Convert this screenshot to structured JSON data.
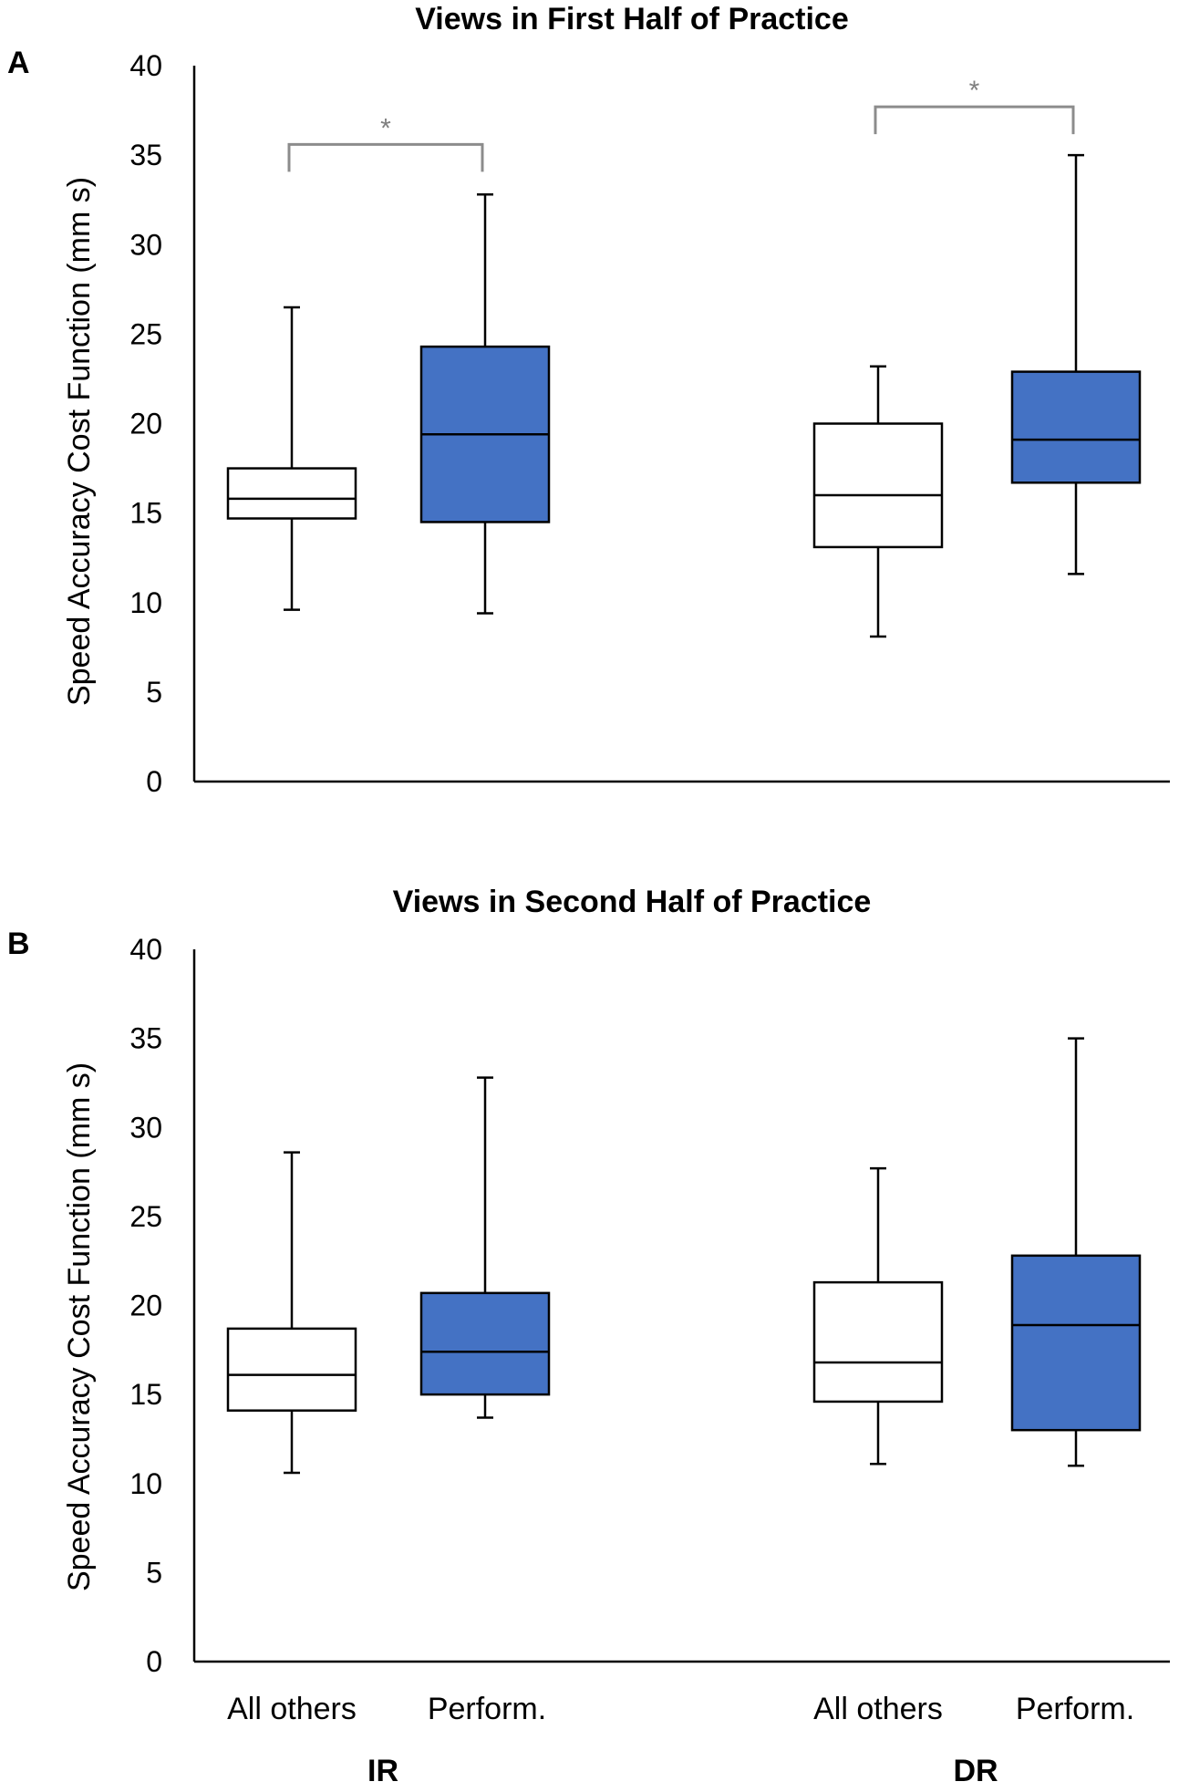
{
  "colors": {
    "performance": "#4472c4",
    "all_others": "#ffffff",
    "outline": "#000000",
    "significance": "#8c8c8c"
  },
  "x_categories": [
    "All others",
    "Perform.",
    "All others",
    "Perform."
  ],
  "groups": [
    "IR",
    "DR"
  ],
  "chart_data": [
    {
      "type": "box",
      "panel": "A",
      "title": "Views in First Half of Practice",
      "ylabel": "Speed Accuracy Cost Function (mm s)",
      "ylim": [
        0,
        40
      ],
      "yticks": [
        0,
        5,
        10,
        15,
        20,
        25,
        30,
        35,
        40
      ],
      "categories": [
        "All others",
        "Perform.",
        "All others",
        "Perform."
      ],
      "groups": [
        "IR",
        "DR"
      ],
      "boxes": [
        {
          "group": "IR",
          "category": "All others",
          "min": 9.6,
          "q1": 14.7,
          "median": 15.8,
          "q3": 17.5,
          "max": 26.5
        },
        {
          "group": "IR",
          "category": "Perform.",
          "min": 9.4,
          "q1": 14.5,
          "median": 19.4,
          "q3": 24.3,
          "max": 32.8
        },
        {
          "group": "DR",
          "category": "All others",
          "min": 8.1,
          "q1": 13.1,
          "median": 16.0,
          "q3": 20.0,
          "max": 23.2
        },
        {
          "group": "DR",
          "category": "Perform.",
          "min": 11.6,
          "q1": 16.7,
          "median": 19.1,
          "q3": 22.9,
          "max": 35.0
        }
      ],
      "annotations": [
        {
          "text": "*",
          "between": [
            "IR All others",
            "IR Perform."
          ],
          "level": 35.6
        },
        {
          "text": "*",
          "between": [
            "DR All others",
            "DR Perform."
          ],
          "level": 37.7
        }
      ]
    },
    {
      "type": "box",
      "panel": "B",
      "title": "Views in Second Half of Practice",
      "ylabel": "Speed Accuracy Cost Function (mm s)",
      "ylim": [
        0,
        40
      ],
      "yticks": [
        0,
        5,
        10,
        15,
        20,
        25,
        30,
        35,
        40
      ],
      "categories": [
        "All others",
        "Perform.",
        "All others",
        "Perform."
      ],
      "groups": [
        "IR",
        "DR"
      ],
      "boxes": [
        {
          "group": "IR",
          "category": "All others",
          "min": 10.6,
          "q1": 14.1,
          "median": 16.1,
          "q3": 18.7,
          "max": 28.6
        },
        {
          "group": "IR",
          "category": "Perform.",
          "min": 13.7,
          "q1": 15.0,
          "median": 17.4,
          "q3": 20.7,
          "max": 32.8
        },
        {
          "group": "DR",
          "category": "All others",
          "min": 11.1,
          "q1": 14.6,
          "median": 16.8,
          "q3": 21.3,
          "max": 27.7
        },
        {
          "group": "DR",
          "category": "Perform.",
          "min": 11.0,
          "q1": 13.0,
          "median": 18.9,
          "q3": 22.8,
          "max": 35.0
        }
      ],
      "annotations": []
    }
  ]
}
